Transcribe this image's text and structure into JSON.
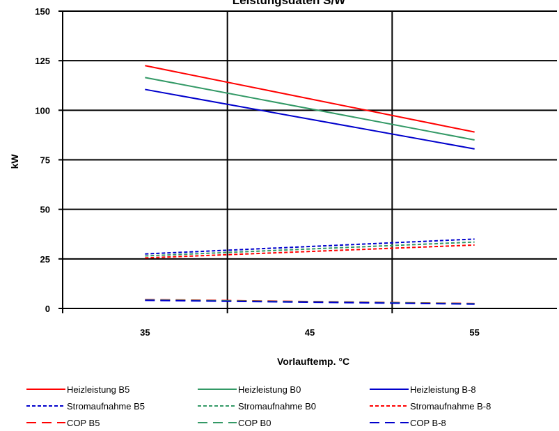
{
  "chart_data": {
    "type": "line",
    "title": "Leistungsdaten S/W",
    "xlabel": "Vorlauftemp. °C",
    "ylabel": "kW",
    "x_ticks": [
      35,
      45,
      55
    ],
    "xlim": [
      30,
      60
    ],
    "ylim": [
      0,
      150
    ],
    "y_ticks": [
      0,
      25,
      50,
      75,
      100,
      125,
      150
    ],
    "grid": true,
    "legend_position": "bottom",
    "x": [
      35,
      55
    ],
    "series": [
      {
        "name": "Heizleistung B5",
        "values": [
          122.5,
          89
        ],
        "color": "#ff0000",
        "dash": "solid"
      },
      {
        "name": "Heizleistung B0",
        "values": [
          116.5,
          85
        ],
        "color": "#339966",
        "dash": "solid"
      },
      {
        "name": "Heizleistung B-8",
        "values": [
          110.5,
          80.5
        ],
        "color": "#0000cc",
        "dash": "solid"
      },
      {
        "name": "Stromaufnahme B5",
        "values": [
          27.5,
          35
        ],
        "color": "#0000cc",
        "dash": "short"
      },
      {
        "name": "Stromaufnahme B0",
        "values": [
          26.5,
          33.5
        ],
        "color": "#339966",
        "dash": "short"
      },
      {
        "name": "Stromaufnahme B-8",
        "values": [
          25.5,
          32
        ],
        "color": "#ff0000",
        "dash": "short"
      },
      {
        "name": "COP B5",
        "values": [
          4.5,
          2.5
        ],
        "color": "#ff0000",
        "dash": "long"
      },
      {
        "name": "COP B0",
        "values": [
          4.3,
          2.4
        ],
        "color": "#339966",
        "dash": "long"
      },
      {
        "name": "COP B-8",
        "values": [
          4.1,
          2.2
        ],
        "color": "#0000cc",
        "dash": "long"
      }
    ]
  }
}
